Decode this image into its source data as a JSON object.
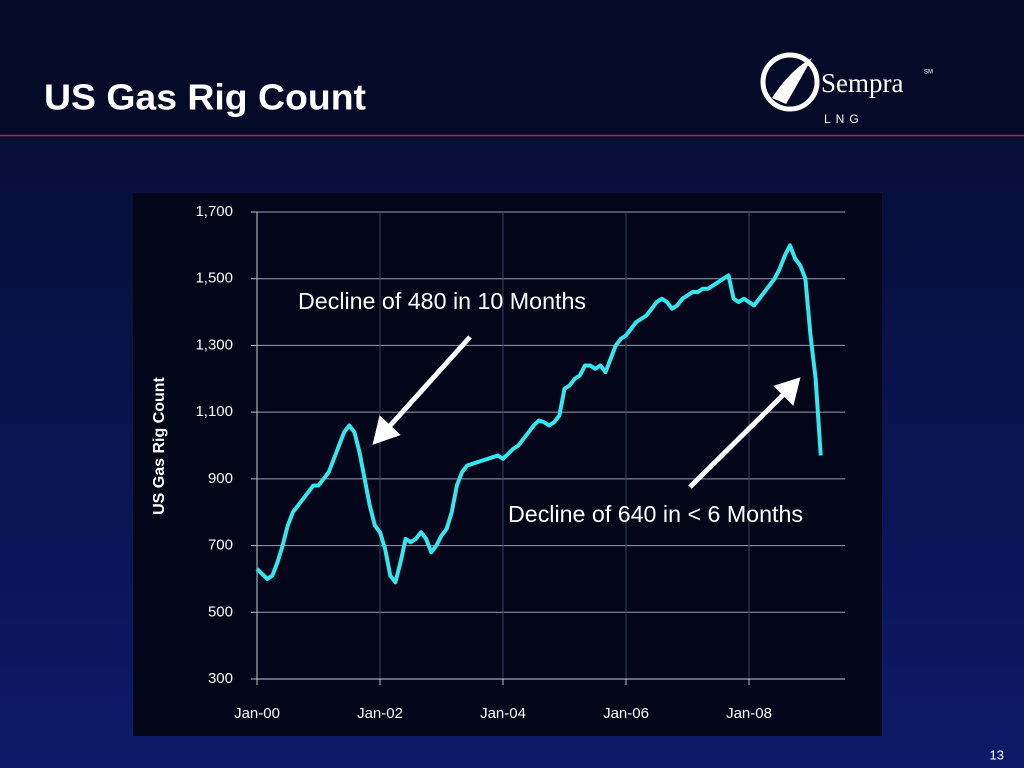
{
  "header": {
    "title": "US Gas Rig Count",
    "logo_name": "Sempra",
    "logo_mark": "SM",
    "logo_sub": "LNG"
  },
  "page_number": "13",
  "chart_data": {
    "type": "line",
    "y_label": "US Gas Rig Count",
    "annotations": [
      "Decline of 480 in 10 Months",
      "Decline of 640 in < 6 Months"
    ],
    "x": [
      "Jan-00",
      "Feb-00",
      "Mar-00",
      "Apr-00",
      "May-00",
      "Jun-00",
      "Jul-00",
      "Aug-00",
      "Sep-00",
      "Oct-00",
      "Nov-00",
      "Dec-00",
      "Jan-01",
      "Feb-01",
      "Mar-01",
      "Apr-01",
      "May-01",
      "Jun-01",
      "Jul-01",
      "Aug-01",
      "Sep-01",
      "Oct-01",
      "Nov-01",
      "Dec-01",
      "Jan-02",
      "Feb-02",
      "Mar-02",
      "Apr-02",
      "May-02",
      "Jun-02",
      "Jul-02",
      "Aug-02",
      "Sep-02",
      "Oct-02",
      "Nov-02",
      "Dec-02",
      "Jan-03",
      "Feb-03",
      "Mar-03",
      "Apr-03",
      "May-03",
      "Jun-03",
      "Jul-03",
      "Aug-03",
      "Sep-03",
      "Oct-03",
      "Nov-03",
      "Dec-03",
      "Jan-04",
      "Feb-04",
      "Mar-04",
      "Apr-04",
      "May-04",
      "Jun-04",
      "Jul-04",
      "Aug-04",
      "Sep-04",
      "Oct-04",
      "Nov-04",
      "Dec-04",
      "Jan-05",
      "Feb-05",
      "Mar-05",
      "Apr-05",
      "May-05",
      "Jun-05",
      "Jul-05",
      "Aug-05",
      "Sep-05",
      "Oct-05",
      "Nov-05",
      "Dec-05",
      "Jan-06",
      "Feb-06",
      "Mar-06",
      "Apr-06",
      "May-06",
      "Jun-06",
      "Jul-06",
      "Aug-06",
      "Sep-06",
      "Oct-06",
      "Nov-06",
      "Dec-06",
      "Jan-07",
      "Feb-07",
      "Mar-07",
      "Apr-07",
      "May-07",
      "Jun-07",
      "Jul-07",
      "Aug-07",
      "Sep-07",
      "Oct-07",
      "Nov-07",
      "Dec-07",
      "Jan-08",
      "Feb-08",
      "Mar-08",
      "Apr-08",
      "May-08",
      "Jun-08",
      "Jul-08",
      "Aug-08",
      "Sep-08",
      "Oct-08",
      "Nov-08",
      "Dec-08",
      "Jan-09",
      "Feb-09",
      "Mar-09"
    ],
    "series": [
      {
        "name": "US Gas Rig Count",
        "color": "#33e6f0",
        "values": [
          630,
          615,
          600,
          610,
          650,
          700,
          760,
          800,
          820,
          840,
          860,
          880,
          880,
          900,
          920,
          960,
          1000,
          1040,
          1060,
          1040,
          980,
          900,
          820,
          760,
          740,
          690,
          610,
          590,
          650,
          720,
          710,
          720,
          740,
          720,
          680,
          700,
          730,
          750,
          800,
          880,
          920,
          940,
          945,
          950,
          955,
          960,
          965,
          970,
          960,
          975,
          990,
          1000,
          1020,
          1040,
          1060,
          1075,
          1070,
          1060,
          1070,
          1090,
          1170,
          1180,
          1200,
          1210,
          1240,
          1240,
          1230,
          1240,
          1220,
          1260,
          1300,
          1320,
          1330,
          1350,
          1370,
          1380,
          1390,
          1410,
          1430,
          1440,
          1430,
          1410,
          1420,
          1440,
          1450,
          1460,
          1460,
          1470,
          1470,
          1480,
          1490,
          1500,
          1510,
          1440,
          1430,
          1440,
          1430,
          1420,
          1440,
          1460,
          1480,
          1500,
          1530,
          1570,
          1600,
          1560,
          1540,
          1500,
          1330,
          1200,
          970
        ]
      }
    ],
    "xticks": [
      "Jan-00",
      "Jan-02",
      "Jan-04",
      "Jan-06",
      "Jan-08"
    ],
    "ylim": [
      300,
      1700
    ],
    "yticks": [
      300,
      500,
      700,
      900,
      {
        "value": 1100,
        "label": "1,100"
      },
      {
        "value": 1300,
        "label": "1,300"
      },
      {
        "value": 1500,
        "label": "1,500"
      },
      {
        "value": 1700,
        "label": "1,700"
      }
    ],
    "grid": true
  }
}
